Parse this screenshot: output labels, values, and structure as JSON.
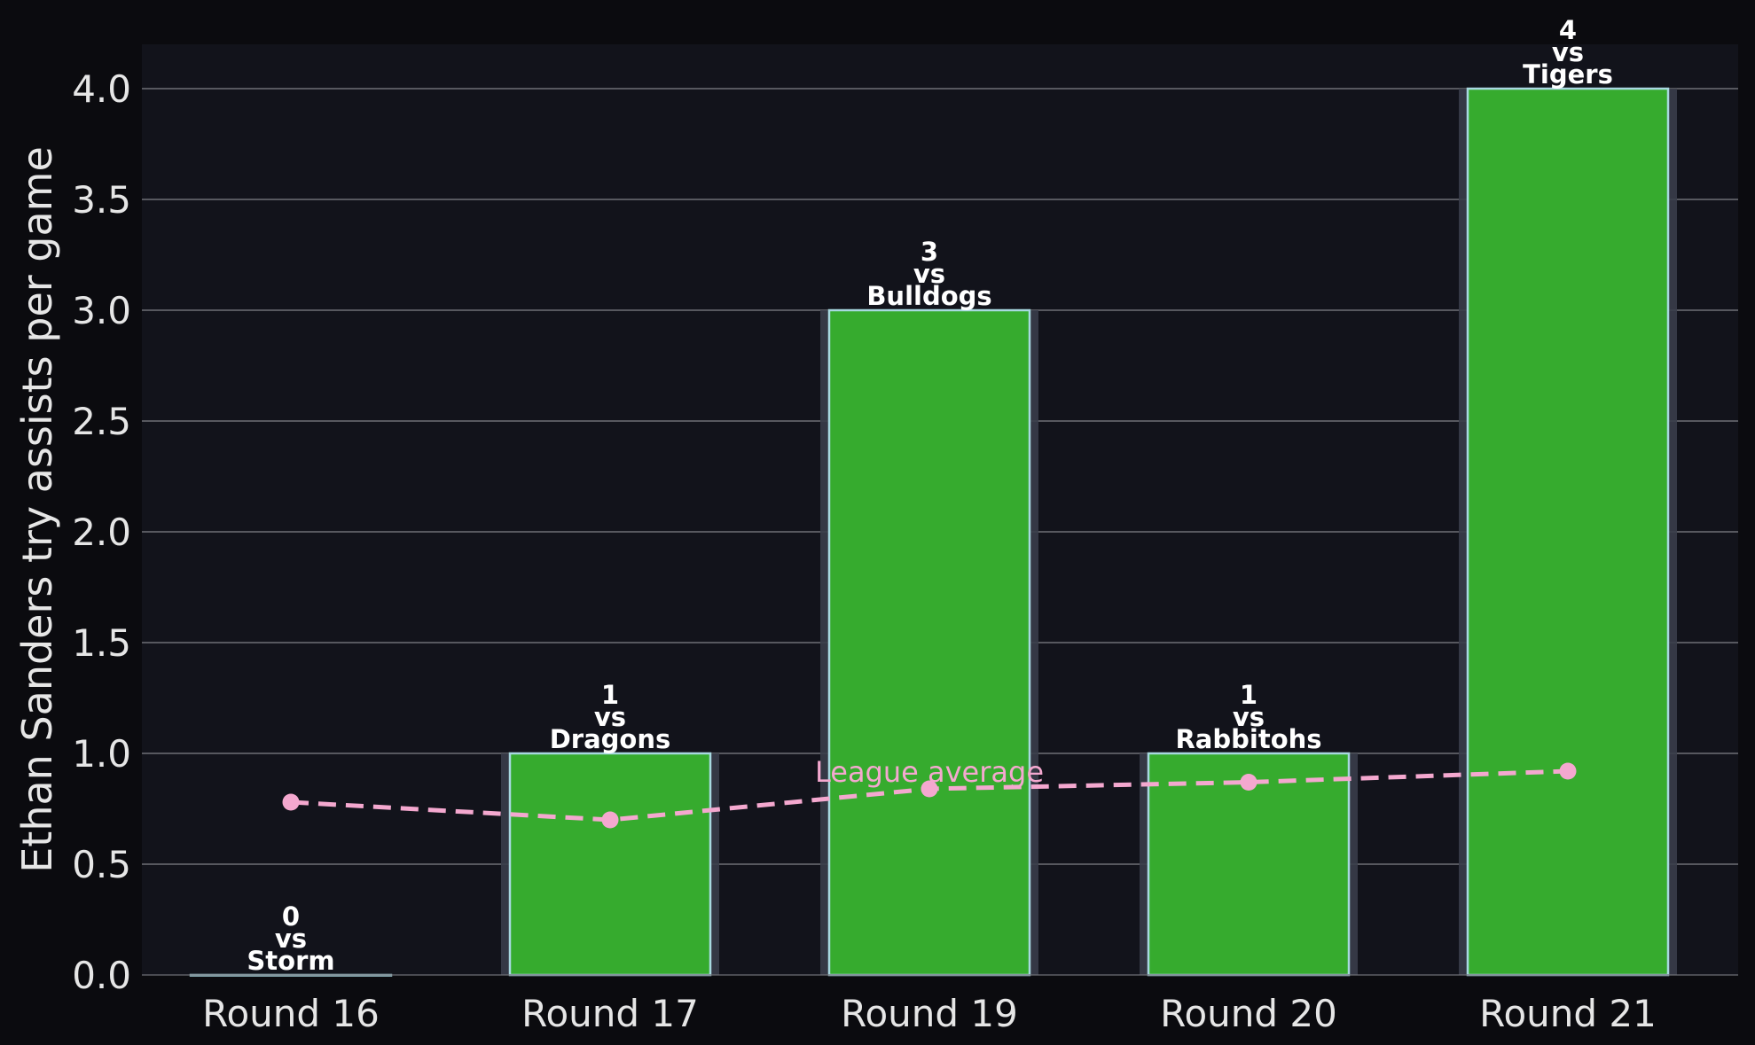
{
  "chart_data": {
    "type": "bar",
    "categories": [
      "Round 16",
      "Round 17",
      "Round 19",
      "Round 20",
      "Round 21"
    ],
    "series": [
      {
        "values": [
          0,
          1,
          3,
          1,
          4
        ],
        "color": "#36ab2e"
      }
    ],
    "bar_labels": [
      [
        "0",
        "vs",
        "Storm"
      ],
      [
        "1",
        "vs",
        "Dragons"
      ],
      [
        "3",
        "vs",
        "Bulldogs"
      ],
      [
        "1",
        "vs",
        "Rabbitohs"
      ],
      [
        "4",
        "vs",
        "Tigers"
      ]
    ],
    "league_average": {
      "label": "League average",
      "values": [
        0.78,
        0.7,
        0.84,
        0.87,
        0.92
      ],
      "color": "#f4a8cf"
    },
    "ylabel": "Ethan Sanders try assists per game",
    "xlabel": "",
    "title": "",
    "ylim": [
      0,
      4.2
    ],
    "yticks": [
      0.0,
      0.5,
      1.0,
      1.5,
      2.0,
      2.5,
      3.0,
      3.5,
      4.0
    ],
    "grid": "horizontal",
    "colors": {
      "page_background": "#0b0b0f",
      "plot_background": "#12131b",
      "grid": "#6e6f76",
      "bar_edge": "#a8d8e0",
      "bar_halo": "#3a3d4a"
    }
  }
}
